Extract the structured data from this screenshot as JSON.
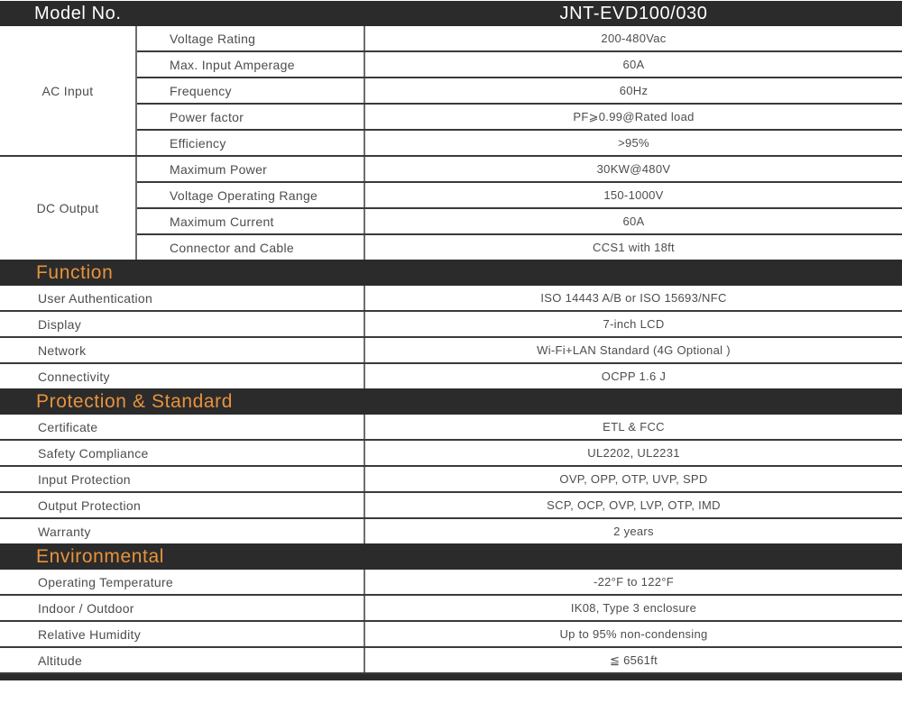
{
  "header": {
    "model_label": "Model No.",
    "model_value": "JNT-EVD100/030"
  },
  "groups": [
    {
      "group": "AC Input",
      "rows": [
        {
          "label": "Voltage Rating",
          "value": "200-480Vac"
        },
        {
          "label": "Max. Input Amperage",
          "value": "60A"
        },
        {
          "label": "Frequency",
          "value": "60Hz"
        },
        {
          "label": "Power factor",
          "value": "PF⩾0.99@Rated load"
        },
        {
          "label": "Efficiency",
          "value": ">95%"
        }
      ]
    },
    {
      "group": "DC Output",
      "rows": [
        {
          "label": "Maximum Power",
          "value": "30KW@480V"
        },
        {
          "label": "Voltage Operating Range",
          "value": "150-1000V"
        },
        {
          "label": "Maximum Current",
          "value": "60A"
        },
        {
          "label": "Connector and Cable",
          "value": "CCS1 with 18ft"
        }
      ]
    }
  ],
  "sections": [
    {
      "title": "Function",
      "rows": [
        {
          "label": "User Authentication",
          "value": "ISO 14443 A/B or ISO 15693/NFC"
        },
        {
          "label": "Display",
          "value": "7-inch LCD"
        },
        {
          "label": "Network",
          "value": "Wi-Fi+LAN Standard (4G  Optional )"
        },
        {
          "label": "Connectivity",
          "value": "OCPP 1.6 J"
        }
      ]
    },
    {
      "title": "Protection & Standard",
      "rows": [
        {
          "label": "Certificate",
          "value": "ETL & FCC"
        },
        {
          "label": "Safety Compliance",
          "value": "UL2202, UL2231"
        },
        {
          "label": "Input Protection",
          "value": "OVP, OPP, OTP, UVP, SPD"
        },
        {
          "label": "Output Protection",
          "value": "SCP, OCP, OVP, LVP, OTP, IMD"
        },
        {
          "label": "Warranty",
          "value": "2 years"
        }
      ]
    },
    {
      "title": "Environmental",
      "rows": [
        {
          "label": "Operating Temperature",
          "value": "-22°F to 122°F"
        },
        {
          "label": "Indoor / Outdoor",
          "value": "IK08, Type 3 enclosure"
        },
        {
          "label": "Relative Humidity",
          "value": "Up to 95% non-condensing"
        },
        {
          "label": "Altitude",
          "value": "≦ 6561ft"
        }
      ]
    }
  ],
  "colors": {
    "bar_bg": "#2B2B2B",
    "accent_orange": "#E8923C",
    "body_text": "#4D4D4D",
    "line_dark": "#3A3A3A",
    "line_mid": "#6E6E6E"
  }
}
